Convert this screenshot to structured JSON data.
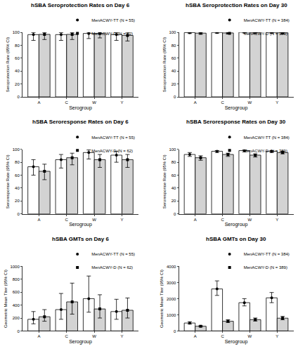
{
  "chart_data": [
    {
      "type": "bar",
      "title": "hSBA Seroprotection Rates on Day 6",
      "x_label": "Serogroup",
      "y_label": "Seroprotection Rate (95% CI)",
      "categories": [
        "A",
        "C",
        "W",
        "Y"
      ],
      "ylim": [
        0,
        100
      ],
      "yticks": [
        0,
        20,
        40,
        60,
        80,
        100
      ],
      "grid": false,
      "legend": "top right",
      "series": [
        {
          "name": "MenACWY-TT (N = 55)",
          "color": "#ffffff",
          "marker": "circle",
          "values": [
            96.4,
            96.4,
            98.2,
            96.4
          ],
          "ci_lower": [
            87.5,
            87.5,
            90.3,
            87.5
          ],
          "ci_upper": [
            99.6,
            99.6,
            100,
            99.6
          ]
        },
        {
          "name": "MenACWY-D (N = 62)",
          "color": "#d3d3d3",
          "marker": "square",
          "values": [
            96.8,
            96.8,
            98.4,
            95.2
          ],
          "ci_lower": [
            88.8,
            88.8,
            91.3,
            86.5
          ],
          "ci_upper": [
            99.6,
            99.6,
            100,
            99.0
          ]
        }
      ]
    },
    {
      "type": "bar",
      "title": "hSBA Seroprotection Rates on Day 30",
      "x_label": "Serogroup",
      "y_label": "Seroprotection Rate (95% CI)",
      "categories": [
        "A",
        "C",
        "W",
        "Y"
      ],
      "ylim": [
        0,
        100
      ],
      "yticks": [
        0,
        20,
        40,
        60,
        80,
        100
      ],
      "grid": false,
      "legend": "top right",
      "series": [
        {
          "name": "MenACWY-TT (N = 384)",
          "color": "#ffffff",
          "marker": "circle",
          "values": [
            99.5,
            99.7,
            100,
            99.7
          ],
          "ci_lower": [
            98.1,
            98.5,
            99.0,
            98.5
          ],
          "ci_upper": [
            100,
            100,
            100,
            100
          ]
        },
        {
          "name": "MenACWY-D (N = 389)",
          "color": "#d3d3d3",
          "marker": "square",
          "values": [
            98.7,
            99.0,
            99.7,
            99.2
          ],
          "ci_lower": [
            97.0,
            97.4,
            98.6,
            97.6
          ],
          "ci_upper": [
            99.6,
            99.7,
            100,
            99.8
          ]
        }
      ]
    },
    {
      "type": "bar",
      "title": "hSBA Seroresponse Rates on Day 6",
      "x_label": "Serogroup",
      "y_label": "Seroresponse Rate (95% CI)",
      "categories": [
        "A",
        "C",
        "W",
        "Y"
      ],
      "ylim": [
        0,
        100
      ],
      "yticks": [
        0,
        20,
        40,
        60,
        80,
        100
      ],
      "grid": false,
      "legend": "top right",
      "series": [
        {
          "name": "MenACWY-TT (N = 55)",
          "color": "#ffffff",
          "marker": "circle",
          "values": [
            73,
            84,
            95,
            91
          ],
          "ci_lower": [
            60,
            71,
            85,
            80
          ],
          "ci_upper": [
            84,
            92,
            99,
            97
          ]
        },
        {
          "name": "MenACWY-D (N = 62)",
          "color": "#d3d3d3",
          "marker": "square",
          "values": [
            66,
            87,
            84,
            84
          ],
          "ci_lower": [
            53,
            76,
            72,
            72
          ],
          "ci_upper": [
            77,
            94,
            92,
            92
          ]
        }
      ]
    },
    {
      "type": "bar",
      "title": "hSBA Seroresponse Rates on Day 30",
      "x_label": "Serogroup",
      "y_label": "Seroresponse Rate (95% CI)",
      "categories": [
        "A",
        "C",
        "W",
        "Y"
      ],
      "ylim": [
        0,
        100
      ],
      "yticks": [
        0,
        20,
        40,
        60,
        80,
        100
      ],
      "grid": false,
      "legend": "top right",
      "series": [
        {
          "name": "MenACWY-TT (N = 384)",
          "color": "#ffffff",
          "marker": "circle",
          "values": [
            92,
            97,
            98,
            97
          ],
          "ci_lower": [
            89,
            95,
            96,
            95
          ],
          "ci_upper": [
            95,
            98,
            99,
            98
          ]
        },
        {
          "name": "MenACWY-D (N = 389)",
          "color": "#d3d3d3",
          "marker": "square",
          "values": [
            87,
            92,
            91,
            95
          ],
          "ci_lower": [
            83,
            89,
            88,
            93
          ],
          "ci_upper": [
            90,
            94,
            93,
            97
          ]
        }
      ]
    },
    {
      "type": "bar",
      "title": "hSBA GMTs on Day 6",
      "x_label": "Serogroup",
      "y_label": "Geometric Mean Titer (95% CI)",
      "categories": [
        "A",
        "C",
        "W",
        "Y"
      ],
      "ylim": [
        0,
        1000
      ],
      "yticks": [
        0,
        200,
        400,
        600,
        800,
        1000
      ],
      "grid": false,
      "legend": "top right",
      "series": [
        {
          "name": "MenACWY-TT (N = 55)",
          "color": "#ffffff",
          "marker": "circle",
          "values": [
            180,
            330,
            500,
            300
          ],
          "ci_lower": [
            110,
            180,
            290,
            180
          ],
          "ci_upper": [
            300,
            580,
            850,
            490
          ]
        },
        {
          "name": "MenACWY-D (N = 62)",
          "color": "#d3d3d3",
          "marker": "square",
          "values": [
            220,
            450,
            340,
            320
          ],
          "ci_lower": [
            150,
            260,
            200,
            200
          ],
          "ci_upper": [
            330,
            740,
            560,
            510
          ]
        }
      ]
    },
    {
      "type": "bar",
      "title": "hSBA GMTs on Day 30",
      "x_label": "Serogroup",
      "y_label": "Geometric Mean Titer (95% CI)",
      "categories": [
        "A",
        "C",
        "W",
        "Y"
      ],
      "ylim": [
        0,
        4000
      ],
      "yticks": [
        0,
        1000,
        2000,
        3000,
        4000
      ],
      "grid": false,
      "legend": "top right",
      "series": [
        {
          "name": "MenACWY-TT (N = 384)",
          "color": "#ffffff",
          "marker": "circle",
          "values": [
            490,
            2600,
            1750,
            2050
          ],
          "ci_lower": [
            420,
            2200,
            1550,
            1750
          ],
          "ci_upper": [
            570,
            3100,
            2000,
            2380
          ]
        },
        {
          "name": "MenACWY-D (N = 389)",
          "color": "#d3d3d3",
          "marker": "square",
          "values": [
            290,
            600,
            700,
            790
          ],
          "ci_lower": [
            250,
            520,
            610,
            690
          ],
          "ci_upper": [
            330,
            690,
            800,
            900
          ]
        }
      ]
    }
  ]
}
